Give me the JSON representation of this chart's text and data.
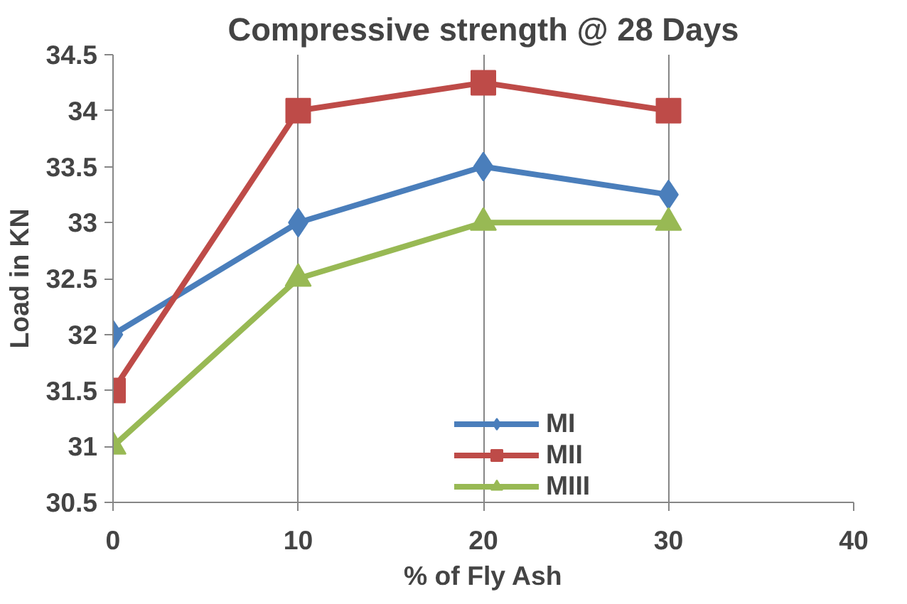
{
  "chart_data": {
    "type": "line",
    "title": "Compressive strength @ 28 Days",
    "xlabel": "% of Fly Ash",
    "ylabel": "Load in KN",
    "x": [
      0,
      10,
      20,
      30
    ],
    "series": [
      {
        "name": "MI",
        "color": "#4a7ebb",
        "values": [
          32,
          33,
          33.5,
          33.25
        ],
        "marker": "diamond"
      },
      {
        "name": "MII",
        "color": "#be4b48",
        "values": [
          31.5,
          34,
          34.25,
          34
        ],
        "marker": "square"
      },
      {
        "name": "MIII",
        "color": "#98b954",
        "values": [
          31,
          32.5,
          33,
          33
        ],
        "marker": "triangle"
      }
    ],
    "xlim": [
      0,
      40
    ],
    "xticks": [
      0,
      10,
      20,
      30,
      40
    ],
    "ylim": [
      30.5,
      34.5
    ],
    "yticks": [
      30.5,
      31,
      31.5,
      32,
      32.5,
      33,
      33.5,
      34,
      34.5
    ],
    "grid": "x",
    "legend": "bottom",
    "line_style": "solid"
  }
}
